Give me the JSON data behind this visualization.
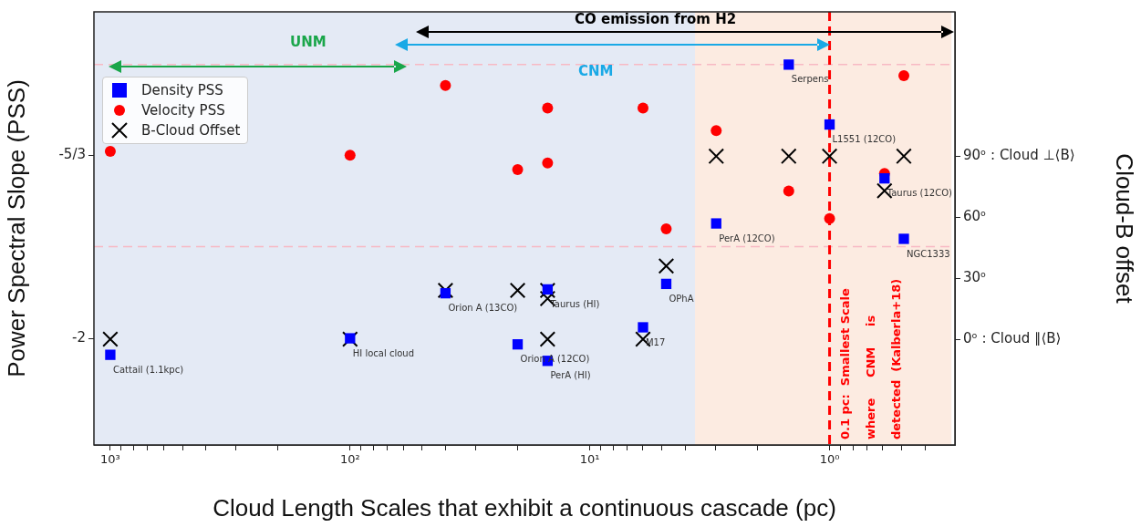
{
  "chart_data": {
    "type": "scatter",
    "xlabel": "Cloud Length Scales that exhibit a continuous cascade (pc)",
    "ylabel": "Power Spectral Slope (PSS)",
    "y2label": "Cloud-B offset",
    "log": "x",
    "grid": false,
    "legend": "top left",
    "xlim": [
      1170,
      0.31
    ],
    "xticks": [
      {
        "value": 1000,
        "label": "10³"
      },
      {
        "value": 900,
        "label": null
      },
      {
        "value": 800,
        "label": null
      },
      {
        "value": 700,
        "label": null
      },
      {
        "value": 600,
        "label": null
      },
      {
        "value": 500,
        "label": null
      },
      {
        "value": 400,
        "label": null
      },
      {
        "value": 300,
        "label": null
      },
      {
        "value": 200,
        "label": null
      },
      {
        "value": 100,
        "label": "10²"
      },
      {
        "value": 90,
        "label": null
      },
      {
        "value": 80,
        "label": null
      },
      {
        "value": 70,
        "label": null
      },
      {
        "value": 60,
        "label": null
      },
      {
        "value": 50,
        "label": null
      },
      {
        "value": 40,
        "label": null
      },
      {
        "value": 30,
        "label": null
      },
      {
        "value": 20,
        "label": null
      },
      {
        "value": 10,
        "label": "10¹"
      },
      {
        "value": 9,
        "label": null
      },
      {
        "value": 8,
        "label": null
      },
      {
        "value": 7,
        "label": null
      },
      {
        "value": 6,
        "label": null
      },
      {
        "value": 5,
        "label": null
      },
      {
        "value": 4,
        "label": null
      },
      {
        "value": 3,
        "label": null
      },
      {
        "value": 2,
        "label": null
      },
      {
        "value": 1,
        "label": "10⁰"
      },
      {
        "value": 0.9,
        "label": null
      },
      {
        "value": 0.8,
        "label": null
      },
      {
        "value": 0.7,
        "label": null
      },
      {
        "value": 0.6,
        "label": null
      },
      {
        "value": 0.5,
        "label": null
      },
      {
        "value": 0.4,
        "label": null
      }
    ],
    "ylim": [
      -2.194,
      -1.406
    ],
    "yticks": [
      {
        "value": -2,
        "label": "-2"
      },
      {
        "value": -1.6667,
        "label": "-5/3"
      }
    ],
    "y2lim": [
      -52,
      161
    ],
    "y2ticks": [
      {
        "value": 0,
        "label": "0ᵒ : Cloud ∥⟨B⟩"
      },
      {
        "value": 30,
        "label": "30ᵒ"
      },
      {
        "value": 60,
        "label": "60ᵒ"
      },
      {
        "value": 90,
        "label": "90ᵒ : Cloud ⊥⟨B⟩"
      }
    ],
    "series": [
      {
        "name": "Density PSS",
        "color": "#0000ff",
        "marker": "square",
        "x": [
          1000,
          100,
          40,
          20,
          15,
          15,
          6,
          4.8,
          2.97,
          1.48,
          1.0,
          0.59,
          0.49
        ],
        "values": [
          -2.03,
          -2.0,
          -1.918,
          -2.011,
          -1.911,
          -2.041,
          -1.98,
          -1.901,
          -1.791,
          -1.502,
          -1.611,
          -1.709,
          -1.819
        ]
      },
      {
        "name": "Velocity PSS",
        "color": "#ff0000",
        "marker": "circle",
        "x": [
          1000,
          100,
          40,
          20,
          15,
          15,
          6,
          4.8,
          2.97,
          1.48,
          1.0,
          0.59,
          0.49
        ],
        "values": [
          -1.66,
          -1.667,
          -1.54,
          -1.693,
          -1.581,
          -1.681,
          -1.581,
          -1.801,
          -1.622,
          -1.732,
          -1.782,
          -1.7,
          -1.522
        ]
      },
      {
        "name": "B-Cloud Offset",
        "color": "#000000",
        "marker": "cross",
        "axis": "y2",
        "x": [
          1000,
          100,
          40,
          20,
          15,
          15,
          15,
          6,
          4.8,
          2.97,
          1.48,
          1.0,
          0.59,
          0.49
        ],
        "values": [
          0,
          0,
          24,
          24,
          24,
          20,
          0,
          0,
          36,
          90,
          90,
          90,
          73,
          90
        ]
      }
    ],
    "bands": [
      {
        "axis": "x",
        "from": 1170,
        "to": 3.64,
        "color": "#e4eaf5"
      },
      {
        "axis": "x",
        "from": 3.64,
        "to": 0.31,
        "color": "#fcebe1"
      }
    ],
    "ref_lines": [
      {
        "axis": "y",
        "value": -1.833,
        "color": "#f7b9c4",
        "line_style": "dashed"
      },
      {
        "axis": "y",
        "value": -1.502,
        "color": "#f7b9c4",
        "line_style": "dashed"
      },
      {
        "axis": "x",
        "value": 1,
        "color": "#ff0000",
        "line_style": "dashed",
        "label": "0.1 pc:  Smallest Scale\nwhere     CNM     is\ndetected  (Kalberla+18)"
      }
    ],
    "annotations": [
      "UNM",
      "CNM",
      "CO emission from H2",
      {
        "text": "Cattail (1.1kpc)",
        "x": 1000,
        "y": -2.03
      },
      {
        "text": "HI local cloud",
        "x": 100,
        "y": -2.0
      },
      {
        "text": "Orion A (13CO)",
        "x": 40,
        "y": -1.918
      },
      {
        "text": "Orion A (12CO)",
        "x": 20,
        "y": -2.011
      },
      {
        "text": "PerA (HI)",
        "x": 15,
        "y": -2.041
      },
      {
        "text": "Taurus (HI)",
        "x": 15,
        "y": -1.911
      },
      {
        "text": "M17",
        "x": 6,
        "y": -1.98
      },
      {
        "text": "OPhA",
        "x": 4.8,
        "y": -1.901
      },
      {
        "text": "PerA (12CO)",
        "x": 2.97,
        "y": -1.791
      },
      {
        "text": "Serpens",
        "x": 1.48,
        "y": -1.502
      },
      {
        "text": "L1551 (12CO)",
        "x": 1.0,
        "y": -1.611
      },
      {
        "text": "Taurus (12CO)",
        "x": 0.59,
        "y": -1.709
      },
      {
        "text": "NGC1333",
        "x": 0.49,
        "y": -1.819
      }
    ]
  }
}
